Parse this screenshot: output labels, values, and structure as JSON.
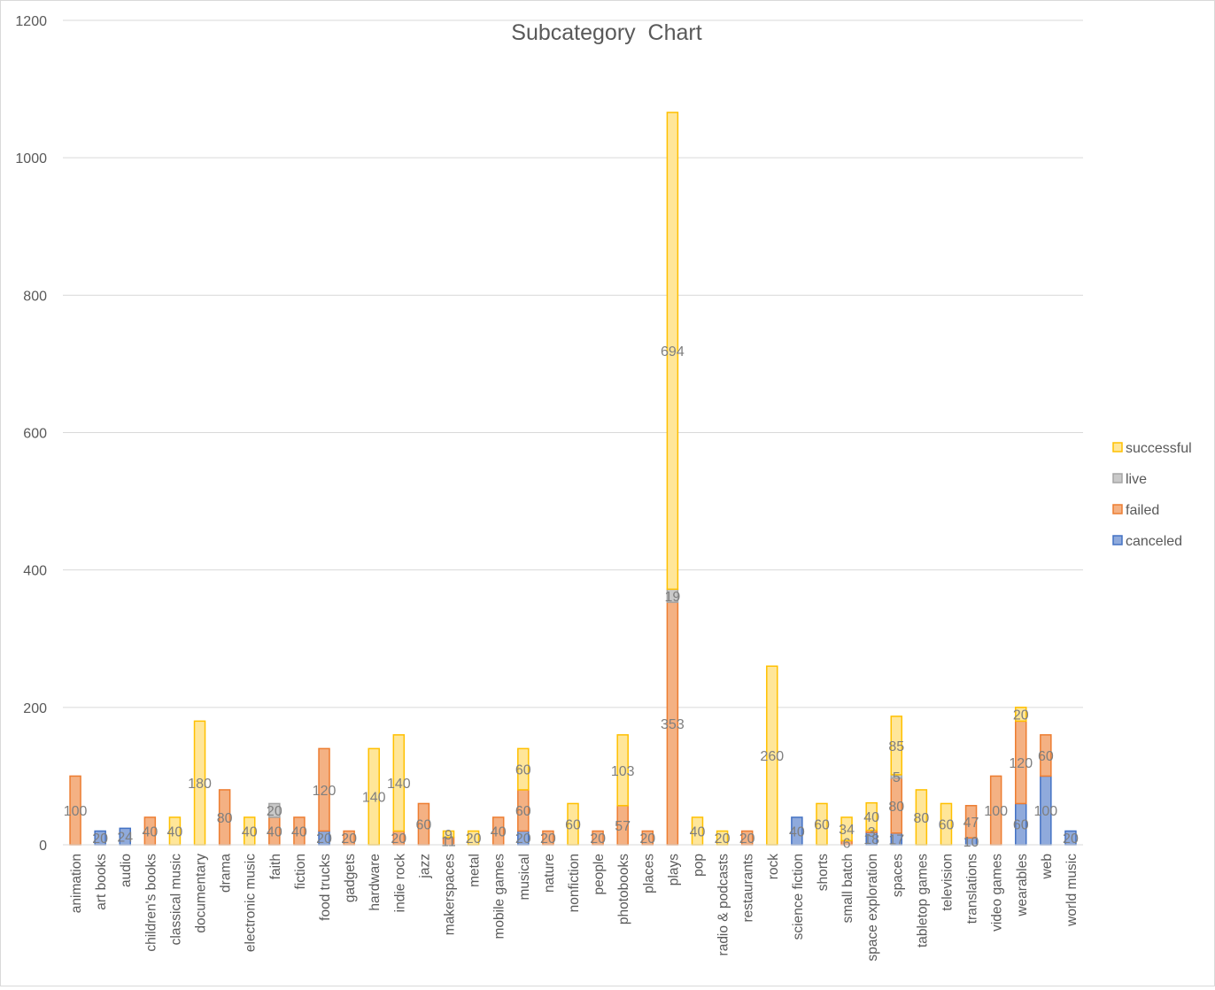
{
  "chart_data": {
    "type": "bar",
    "stacked": true,
    "title": "Subcategory  Chart",
    "xlabel": "",
    "ylabel": "",
    "ylim": [
      0,
      1200
    ],
    "yticks": [
      0,
      200,
      400,
      600,
      800,
      1000,
      1200
    ],
    "grid": true,
    "legend_position": "right",
    "categories": [
      "animation",
      "art books",
      "audio",
      "children's books",
      "classical music",
      "documentary",
      "drama",
      "electronic music",
      "faith",
      "fiction",
      "food trucks",
      "gadgets",
      "hardware",
      "indie rock",
      "jazz",
      "makerspaces",
      "metal",
      "mobile games",
      "musical",
      "nature",
      "nonfiction",
      "people",
      "photobooks",
      "places",
      "plays",
      "pop",
      "radio & podcasts",
      "restaurants",
      "rock",
      "science fiction",
      "shorts",
      "small batch",
      "space exploration",
      "spaces",
      "tabletop games",
      "television",
      "translations",
      "video games",
      "wearables",
      "web",
      "world music"
    ],
    "series": [
      {
        "name": "canceled",
        "color": "#4472c4",
        "fill": "#8faadc",
        "values": [
          0,
          20,
          24,
          0,
          0,
          0,
          0,
          0,
          0,
          0,
          20,
          0,
          0,
          0,
          0,
          0,
          0,
          0,
          20,
          0,
          0,
          0,
          0,
          0,
          0,
          0,
          0,
          0,
          0,
          40,
          0,
          0,
          18,
          17,
          0,
          0,
          10,
          0,
          60,
          100,
          20
        ]
      },
      {
        "name": "failed",
        "color": "#ed7d31",
        "fill": "#f4b183",
        "values": [
          100,
          0,
          0,
          40,
          0,
          0,
          80,
          0,
          40,
          40,
          120,
          20,
          0,
          20,
          60,
          11,
          0,
          40,
          60,
          20,
          0,
          20,
          57,
          20,
          353,
          0,
          0,
          20,
          0,
          0,
          0,
          6,
          3,
          80,
          0,
          0,
          47,
          100,
          120,
          60,
          0
        ]
      },
      {
        "name": "live",
        "color": "#a5a5a5",
        "fill": "#c9c9c9",
        "values": [
          0,
          0,
          0,
          0,
          0,
          0,
          0,
          0,
          20,
          0,
          0,
          0,
          0,
          0,
          0,
          0,
          0,
          0,
          0,
          0,
          0,
          0,
          0,
          0,
          19,
          0,
          0,
          0,
          0,
          0,
          0,
          0,
          0,
          5,
          0,
          0,
          0,
          0,
          0,
          0,
          0
        ]
      },
      {
        "name": "successful",
        "color": "#ffc000",
        "fill": "#ffe699",
        "values": [
          0,
          0,
          0,
          0,
          40,
          180,
          0,
          40,
          0,
          0,
          0,
          0,
          140,
          140,
          0,
          9,
          20,
          0,
          60,
          0,
          60,
          0,
          103,
          0,
          694,
          40,
          20,
          0,
          260,
          0,
          60,
          34,
          40,
          85,
          80,
          60,
          0,
          0,
          20,
          0,
          0
        ]
      }
    ],
    "label_color": "#7f7f7f"
  }
}
